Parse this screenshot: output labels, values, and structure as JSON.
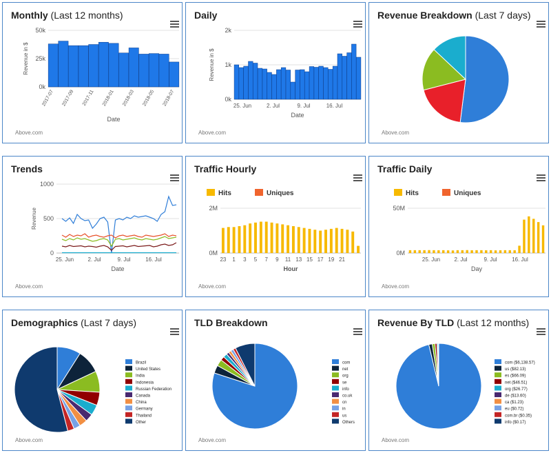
{
  "credit": "Above.com",
  "panels": [
    {
      "id": "monthly",
      "title": "Monthly",
      "subtitle": "(Last 12 months)"
    },
    {
      "id": "daily",
      "title": "Daily",
      "subtitle": ""
    },
    {
      "id": "revbreak",
      "title": "Revenue Breakdown",
      "subtitle": "(Last 7 days)"
    },
    {
      "id": "trends",
      "title": "Trends",
      "subtitle": ""
    },
    {
      "id": "thourly",
      "title": "Traffic Hourly",
      "subtitle": ""
    },
    {
      "id": "tdaily",
      "title": "Traffic Daily",
      "subtitle": ""
    },
    {
      "id": "demo",
      "title": "Demographics",
      "subtitle": "(Last 7 days)"
    },
    {
      "id": "tld",
      "title": "TLD Breakdown",
      "subtitle": ""
    },
    {
      "id": "revtld",
      "title": "Revenue By TLD",
      "subtitle": "(Last 12 months)"
    }
  ],
  "chart_data": [
    {
      "id": "monthly",
      "type": "bar",
      "xlabel": "Date",
      "ylabel": "Revenue in $",
      "ylim": [
        0,
        50000
      ],
      "yticks": [
        "0k",
        "25k",
        "50k"
      ],
      "categories": [
        "2017-07",
        "2017-08",
        "2017-09",
        "2017-10",
        "2017-11",
        "2017-12",
        "2018-01",
        "2018-02",
        "2018-03",
        "2018-04",
        "2018-05",
        "2018-06",
        "2018-07"
      ],
      "tick_labels": [
        "2017-07",
        "2017-09",
        "2017-11",
        "2018-01",
        "2018-03",
        "2018-05",
        "2018-07"
      ],
      "values": [
        38000,
        40500,
        36500,
        36500,
        37500,
        39500,
        38500,
        30000,
        34500,
        29000,
        29500,
        29000,
        22000
      ],
      "color": "#1f78e8"
    },
    {
      "id": "daily",
      "type": "bar",
      "xlabel": "Date",
      "ylabel": "Revenue in $",
      "ylim": [
        0,
        2000
      ],
      "yticks": [
        "0k",
        "1k",
        "2k"
      ],
      "tick_labels": [
        "25. Jun",
        "2. Jul",
        "9. Jul",
        "16. Jul"
      ],
      "values": [
        1000,
        920,
        960,
        1100,
        1050,
        900,
        880,
        780,
        720,
        860,
        920,
        850,
        500,
        850,
        860,
        800,
        950,
        930,
        960,
        920,
        870,
        960,
        1320,
        1250,
        1350,
        1600,
        1220
      ],
      "color": "#1f78e8"
    },
    {
      "id": "revbreak",
      "type": "pie",
      "slices": [
        {
          "value": 52,
          "color": "#2f7ed8"
        },
        {
          "value": 19,
          "color": "#e8202a"
        },
        {
          "value": 16,
          "color": "#8bbc21"
        },
        {
          "value": 13,
          "color": "#1aadce"
        }
      ]
    },
    {
      "id": "trends",
      "type": "line",
      "xlabel": "Date",
      "ylabel": "Revenue",
      "ylim": [
        0,
        1000
      ],
      "yticks": [
        "0",
        "500",
        "1000"
      ],
      "tick_labels": [
        "25. Jun",
        "2. Jul",
        "9. Jul",
        "16. Jul"
      ],
      "series": [
        {
          "color": "#2f7ed8",
          "values": [
            500,
            460,
            510,
            430,
            560,
            500,
            470,
            480,
            360,
            420,
            500,
            520,
            450,
            0,
            480,
            500,
            480,
            520,
            500,
            540,
            520,
            530,
            540,
            520,
            500,
            460,
            560,
            600,
            820,
            690,
            700
          ]
        },
        {
          "color": "#e8502a",
          "values": [
            260,
            230,
            270,
            240,
            260,
            250,
            280,
            230,
            250,
            260,
            240,
            230,
            250,
            260,
            220,
            250,
            260,
            240,
            250,
            260,
            240,
            230,
            260,
            250,
            240,
            250,
            260,
            280,
            240,
            260,
            250
          ]
        },
        {
          "color": "#8bbc21",
          "values": [
            200,
            180,
            210,
            190,
            220,
            200,
            210,
            190,
            170,
            180,
            200,
            210,
            190,
            100,
            200,
            210,
            190,
            200,
            210,
            220,
            200,
            190,
            210,
            200,
            190,
            200,
            220,
            240,
            210,
            220,
            230
          ]
        },
        {
          "color": "#7b1a1a",
          "values": [
            100,
            90,
            110,
            95,
            100,
            105,
            90,
            100,
            95,
            85,
            100,
            110,
            90,
            40,
            95,
            100,
            105,
            90,
            100,
            110,
            95,
            100,
            105,
            110,
            90,
            100,
            120,
            130,
            110,
            120,
            150
          ]
        },
        {
          "color": "#1aadce",
          "values": [
            5,
            5,
            5,
            5,
            5,
            5,
            5,
            5,
            5,
            5,
            5,
            5,
            5,
            5,
            5,
            5,
            5,
            5,
            5,
            5,
            5,
            5,
            5,
            5,
            5,
            5,
            5,
            5,
            5,
            5,
            5
          ]
        }
      ]
    },
    {
      "id": "thourly",
      "type": "bar",
      "xlabel": "Hour",
      "ylim": [
        0,
        2500000
      ],
      "yticks": [
        "0M",
        "2M"
      ],
      "legend": [
        {
          "name": "Hits",
          "color": "#f7b900"
        },
        {
          "name": "Uniques",
          "color": "#f0642d"
        }
      ],
      "tick_labels": [
        "23",
        "1",
        "3",
        "5",
        "7",
        "9",
        "11",
        "13",
        "15",
        "17",
        "19",
        "21"
      ],
      "values": [
        1400000,
        1450000,
        1450000,
        1500000,
        1550000,
        1650000,
        1700000,
        1750000,
        1750000,
        1700000,
        1650000,
        1600000,
        1550000,
        1500000,
        1450000,
        1400000,
        1350000,
        1300000,
        1250000,
        1300000,
        1350000,
        1400000,
        1350000,
        1300000,
        1200000,
        400000
      ],
      "color": "#f7b900"
    },
    {
      "id": "tdaily",
      "type": "bar",
      "xlabel": "Day",
      "ylim": [
        0,
        55000000
      ],
      "yticks": [
        "0M",
        "50M"
      ],
      "legend": [
        {
          "name": "Hits",
          "color": "#f7b900"
        },
        {
          "name": "Uniques",
          "color": "#f0642d"
        }
      ],
      "tick_labels": [
        "25. Jun",
        "2. Jul",
        "9. Jul",
        "16. Jul"
      ],
      "values": [
        3500000,
        3500000,
        3500000,
        3500000,
        3600000,
        3500000,
        3400000,
        3500000,
        3300000,
        3200000,
        3500000,
        3500000,
        3600000,
        3400000,
        3500000,
        3500000,
        3400000,
        3500000,
        3300000,
        3400000,
        3500000,
        3500000,
        3400000,
        9000000,
        41000000,
        45000000,
        42000000,
        38000000,
        34000000
      ],
      "color": "#f7b900"
    },
    {
      "id": "demo",
      "type": "pie",
      "slices": [
        {
          "name": "Brazil",
          "value": 9,
          "color": "#2f7ed8"
        },
        {
          "name": "United States",
          "value": 9,
          "color": "#0d233a"
        },
        {
          "name": "India",
          "value": 8,
          "color": "#8bbc21"
        },
        {
          "name": "Indonesia",
          "value": 5,
          "color": "#910000"
        },
        {
          "name": "Russian Federation",
          "value": 4,
          "color": "#1aadce"
        },
        {
          "name": "Canada",
          "value": 3,
          "color": "#492970"
        },
        {
          "name": "China",
          "value": 3,
          "color": "#f28f43"
        },
        {
          "name": "Germany",
          "value": 2.5,
          "color": "#77a1e5"
        },
        {
          "name": "Thailand",
          "value": 2.5,
          "color": "#c42525"
        },
        {
          "name": "Other",
          "value": 54,
          "color": "#0f3a6e"
        }
      ]
    },
    {
      "id": "tld",
      "type": "pie",
      "slices": [
        {
          "name": "com",
          "value": 80,
          "color": "#2f7ed8"
        },
        {
          "name": "net",
          "value": 3,
          "color": "#0d233a"
        },
        {
          "name": "org",
          "value": 2.5,
          "color": "#8bbc21"
        },
        {
          "name": "se",
          "value": 1.5,
          "color": "#910000"
        },
        {
          "name": "info",
          "value": 1.5,
          "color": "#1aadce"
        },
        {
          "name": "co.uk",
          "value": 1,
          "color": "#492970"
        },
        {
          "name": "cn",
          "value": 1,
          "color": "#f28f43"
        },
        {
          "name": "in",
          "value": 1,
          "color": "#77a1e5"
        },
        {
          "name": "us",
          "value": 1,
          "color": "#c42525"
        },
        {
          "name": "Others",
          "value": 7.5,
          "color": "#0f3a6e"
        }
      ]
    },
    {
      "id": "revtld",
      "type": "pie",
      "slices": [
        {
          "name": "com ($6,138.57)",
          "value": 6138.57,
          "color": "#2f7ed8"
        },
        {
          "name": "us ($82.13)",
          "value": 82.13,
          "color": "#0d233a"
        },
        {
          "name": "es ($66.09)",
          "value": 66.09,
          "color": "#8bbc21"
        },
        {
          "name": "net ($46.51)",
          "value": 46.51,
          "color": "#910000"
        },
        {
          "name": "org ($26.77)",
          "value": 26.77,
          "color": "#1aadce"
        },
        {
          "name": "de ($13.60)",
          "value": 13.6,
          "color": "#492970"
        },
        {
          "name": "ca ($1.23)",
          "value": 1.23,
          "color": "#f28f43"
        },
        {
          "name": "eu ($0.72)",
          "value": 0.72,
          "color": "#77a1e5"
        },
        {
          "name": "com.br ($0.35)",
          "value": 0.35,
          "color": "#c42525"
        },
        {
          "name": "info ($0.17)",
          "value": 0.17,
          "color": "#0f3a6e"
        }
      ]
    }
  ]
}
